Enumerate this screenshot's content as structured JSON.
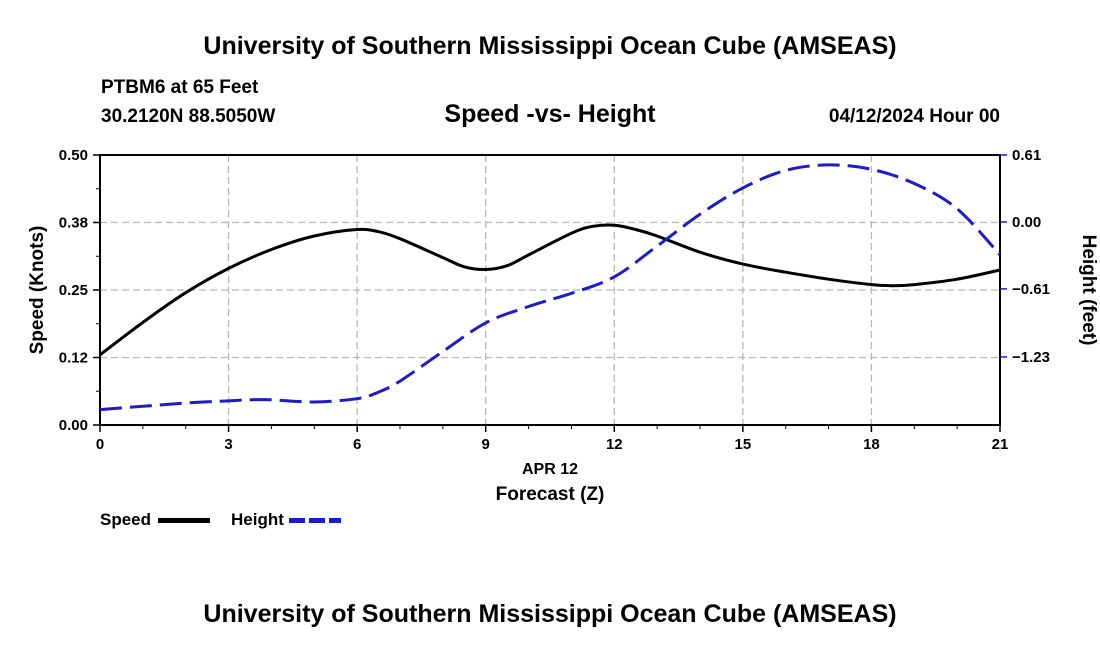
{
  "header": {
    "title_top": "University of Southern Mississippi Ocean Cube (AMSEAS)",
    "title_bottom": "University of Southern Mississippi Ocean Cube (AMSEAS)",
    "station": "PTBM6 at 65 Feet",
    "coords": "30.2120N  88.5050W",
    "chart_title": "Speed -vs- Height",
    "datetime": "04/12/2024 Hour 00"
  },
  "legend": {
    "speed_label": "Speed",
    "height_label": "Height"
  },
  "colors": {
    "speed": "#000000",
    "height": "#1c1ccc",
    "grid": "#b8b8b8"
  },
  "chart_data": {
    "type": "line",
    "title": "Speed -vs- Height",
    "xlabel": "Forecast (Z)",
    "xlabel_date": "APR 12",
    "ylabel_left": "Speed (Knots)",
    "ylabel_right": "Height (feet)",
    "xlim": [
      0,
      21
    ],
    "ylim_left": [
      0,
      0.5
    ],
    "ylim_right": [
      -1.85,
      0.61
    ],
    "x_ticks": [
      0,
      3,
      6,
      9,
      12,
      15,
      18,
      21
    ],
    "x_tick_labels": [
      "0",
      "3",
      "6",
      "9",
      "12",
      "15",
      "18",
      "21"
    ],
    "y_left_ticks": [
      0,
      0.125,
      0.25,
      0.375,
      0.5
    ],
    "y_left_tick_labels": [
      "0.00",
      "0.12",
      "0.25",
      "0.38",
      "0.50"
    ],
    "y_right_ticks": [
      0.61,
      0.0,
      -0.61,
      -1.23
    ],
    "y_right_tick_labels": [
      "0.61",
      "0.00",
      "−0.61",
      "−1.23"
    ],
    "grid": true,
    "series": [
      {
        "name": "Speed",
        "axis": "left",
        "style": "solid",
        "x": [
          0,
          1,
          2,
          3,
          4,
          5,
          6,
          6.5,
          7,
          8,
          8.5,
          9,
          9.5,
          10,
          11,
          11.5,
          12,
          12.5,
          13,
          14,
          15,
          16,
          17,
          18,
          18.5,
          19,
          20,
          21
        ],
        "values": [
          0.13,
          0.19,
          0.245,
          0.29,
          0.325,
          0.35,
          0.362,
          0.358,
          0.345,
          0.31,
          0.293,
          0.288,
          0.295,
          0.315,
          0.355,
          0.368,
          0.37,
          0.362,
          0.35,
          0.32,
          0.298,
          0.283,
          0.27,
          0.26,
          0.258,
          0.26,
          0.27,
          0.287
        ]
      },
      {
        "name": "Height",
        "axis": "right",
        "style": "dashed",
        "x": [
          0,
          1,
          2,
          3,
          3.5,
          4,
          5,
          6,
          6.5,
          7,
          8,
          9,
          10,
          11,
          12,
          13,
          14,
          15,
          16,
          17,
          18,
          19,
          20,
          21
        ],
        "values": [
          -1.71,
          -1.68,
          -1.65,
          -1.63,
          -1.62,
          -1.62,
          -1.64,
          -1.61,
          -1.55,
          -1.45,
          -1.18,
          -0.92,
          -0.77,
          -0.65,
          -0.5,
          -0.22,
          0.07,
          0.31,
          0.47,
          0.52,
          0.48,
          0.35,
          0.12,
          -0.3
        ]
      }
    ]
  }
}
